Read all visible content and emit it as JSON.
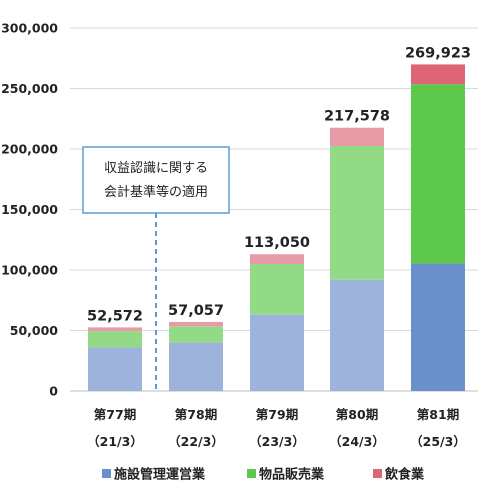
{
  "chart_data": {
    "type": "bar",
    "stacked": true,
    "categories": [
      "第77期",
      "第78期",
      "第79期",
      "第80期",
      "第81期"
    ],
    "category_sublabels": [
      "（21/3）",
      "（22/3）",
      "（23/3）",
      "（24/3）",
      "（25/3）"
    ],
    "series": [
      {
        "name": "施設管理運営業",
        "values": [
          36000,
          40000,
          63000,
          92000,
          105500
        ]
      },
      {
        "name": "物品販売業",
        "values": [
          13500,
          13500,
          42000,
          110500,
          148000
        ]
      },
      {
        "name": "飲食業",
        "values": [
          3072,
          3557,
          8050,
          15078,
          16423
        ]
      }
    ],
    "totals": [
      "52,572",
      "57,057",
      "113,050",
      "217,578",
      "269,923"
    ],
    "ylim": [
      0,
      300000
    ],
    "yticks": [
      "0",
      "50,000",
      "100,000",
      "150,000",
      "200,000",
      "250,000",
      "300,000"
    ],
    "annotation": [
      "収益認識に関する",
      "会計基準等の適用"
    ],
    "legend_position": "bottom",
    "grid": true,
    "colors": {
      "facility": "#9db3dc",
      "goods": "#92da86",
      "food": "#e89aa6",
      "facility_latest": "#6c90cc",
      "goods_latest": "#5cc94c",
      "food_latest": "#de6576",
      "grid": "#d9d9d9",
      "note_border": "#5b9bd5",
      "dashed_line": "#5b9bd5"
    }
  }
}
